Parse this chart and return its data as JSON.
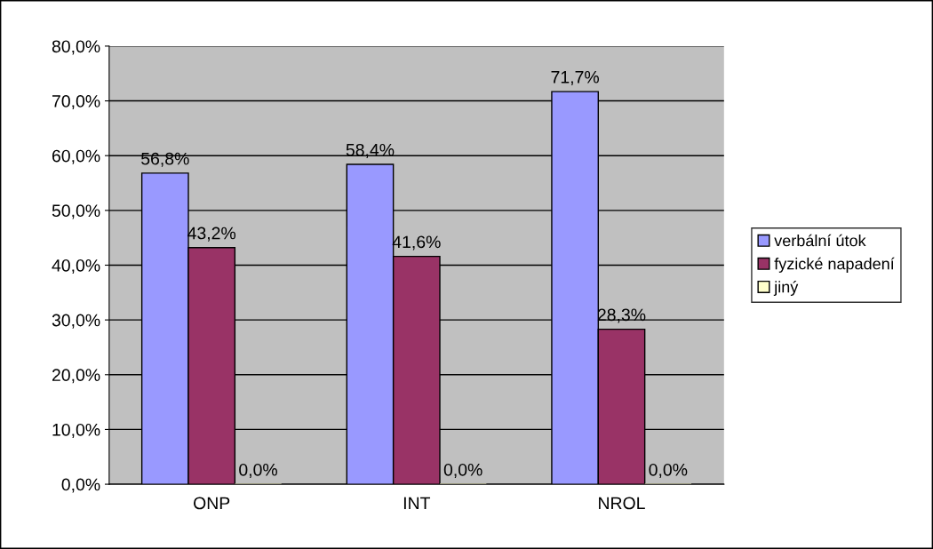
{
  "chart_data": {
    "type": "bar",
    "categories": [
      "ONP",
      "INT",
      "NROL"
    ],
    "series": [
      {
        "name": "verbální útok",
        "color": "#9999ff",
        "values": [
          56.8,
          58.4,
          71.7
        ],
        "value_labels": [
          "56,8%",
          "58,4%",
          "71,7%"
        ]
      },
      {
        "name": "fyzické napadení",
        "color": "#993366",
        "values": [
          43.2,
          41.6,
          28.3
        ],
        "value_labels": [
          "43,2%",
          "41,6%",
          "28,3%"
        ]
      },
      {
        "name": "jiný",
        "color": "#ffffcc",
        "values": [
          0,
          0,
          0
        ],
        "value_labels": [
          "0,0%",
          "0,0%",
          "0,0%"
        ]
      }
    ],
    "ylim": [
      0,
      80
    ],
    "yticks": [
      {
        "value": 0,
        "label": "0,0%"
      },
      {
        "value": 10,
        "label": "10,0%"
      },
      {
        "value": 20,
        "label": "20,0%"
      },
      {
        "value": 30,
        "label": "30,0%"
      },
      {
        "value": 40,
        "label": "40,0%"
      },
      {
        "value": 50,
        "label": "50,0%"
      },
      {
        "value": 60,
        "label": "60,0%"
      },
      {
        "value": 70,
        "label": "70,0%"
      },
      {
        "value": 80,
        "label": "80,0%"
      }
    ],
    "grid": "y",
    "legend": "right"
  }
}
